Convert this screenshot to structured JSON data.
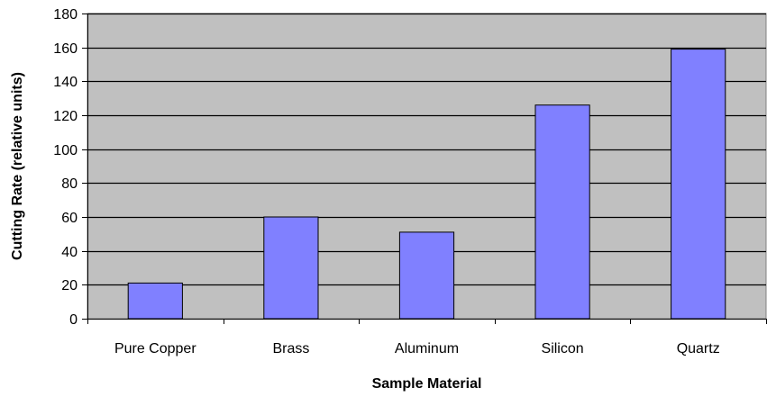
{
  "chart_data": {
    "type": "bar",
    "title": "",
    "xlabel": "Sample Material",
    "ylabel": "Cutting Rate (relative units)",
    "categories": [
      "Pure Copper",
      "Brass",
      "Aluminum",
      "Silicon",
      "Quartz"
    ],
    "values": [
      21,
      60,
      51,
      126,
      159
    ],
    "ylim": [
      0,
      180
    ],
    "yticks": [
      0,
      20,
      40,
      60,
      80,
      100,
      120,
      140,
      160,
      180
    ],
    "grid": true,
    "legend": "none",
    "colors": {
      "plot_background": "#c0c0c0",
      "bar_fill": "#8080ff",
      "bar_stroke": "#000000",
      "gridline": "#000000"
    }
  }
}
